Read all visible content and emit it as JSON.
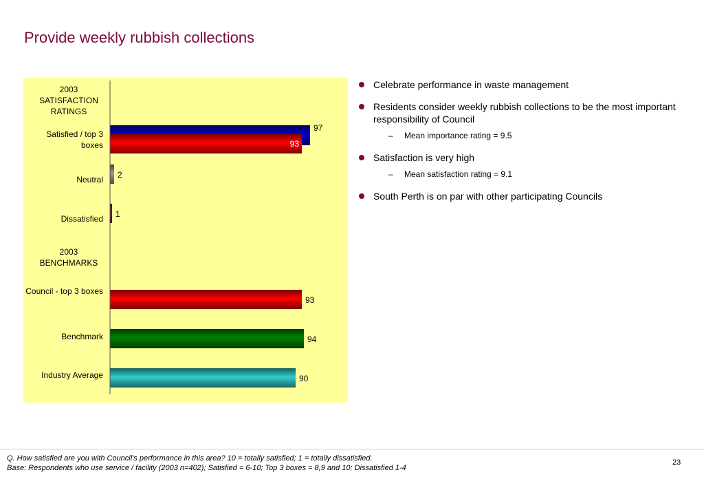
{
  "title": "Provide weekly rubbish collections",
  "chart_data": {
    "type": "bar",
    "orientation": "horizontal",
    "xlim": [
      0,
      100
    ],
    "groups": [
      {
        "header": "2003\nSATISFACTION\nRATINGS",
        "rows": [
          {
            "label": "Satisfied / top 3 boxes",
            "bars": [
              {
                "value": 97,
                "color": "#0000cc",
                "value_label": "97"
              },
              {
                "value": 93,
                "color": "#ff0000",
                "value_label": "93"
              }
            ]
          },
          {
            "label": "Neutral",
            "bars": [
              {
                "value": 2,
                "color": "#999999",
                "value_label": "2"
              }
            ]
          },
          {
            "label": "Dissatisfied",
            "bars": [
              {
                "value": 1,
                "color": "#7a0a3c",
                "value_label": "1"
              }
            ]
          }
        ]
      },
      {
        "header": "2003\nBENCHMARKS",
        "rows": [
          {
            "label": "Council - top 3 boxes",
            "bars": [
              {
                "value": 93,
                "color": "#ff0000",
                "value_label": "93"
              }
            ]
          },
          {
            "label": "Benchmark",
            "bars": [
              {
                "value": 94,
                "color": "#008000",
                "value_label": "94"
              }
            ]
          },
          {
            "label": "Industry Average",
            "bars": [
              {
                "value": 90,
                "color": "#33cccc",
                "value_label": "90"
              }
            ]
          }
        ]
      }
    ]
  },
  "bullets": [
    {
      "text": "Celebrate performance in waste management",
      "subs": []
    },
    {
      "text": "Residents consider weekly rubbish collections to be the most important responsibility of Council",
      "subs": [
        "Mean importance rating = 9.5"
      ]
    },
    {
      "text": "Satisfaction is very high",
      "subs": [
        "Mean satisfaction rating = 9.1"
      ]
    },
    {
      "text": "South Perth is on par with other participating Councils",
      "subs": []
    }
  ],
  "footnote": {
    "line1": "Q. How satisfied are you with Council's performance in this area?  10 = totally satisfied; 1 = totally dissatisfied.",
    "line2": "Base: Respondents who use service / facility (2003 n=402); Satisfied = 6-10; Top 3 boxes = 8,9 and 10; Dissatisfied 1-4"
  },
  "page_number": "23"
}
